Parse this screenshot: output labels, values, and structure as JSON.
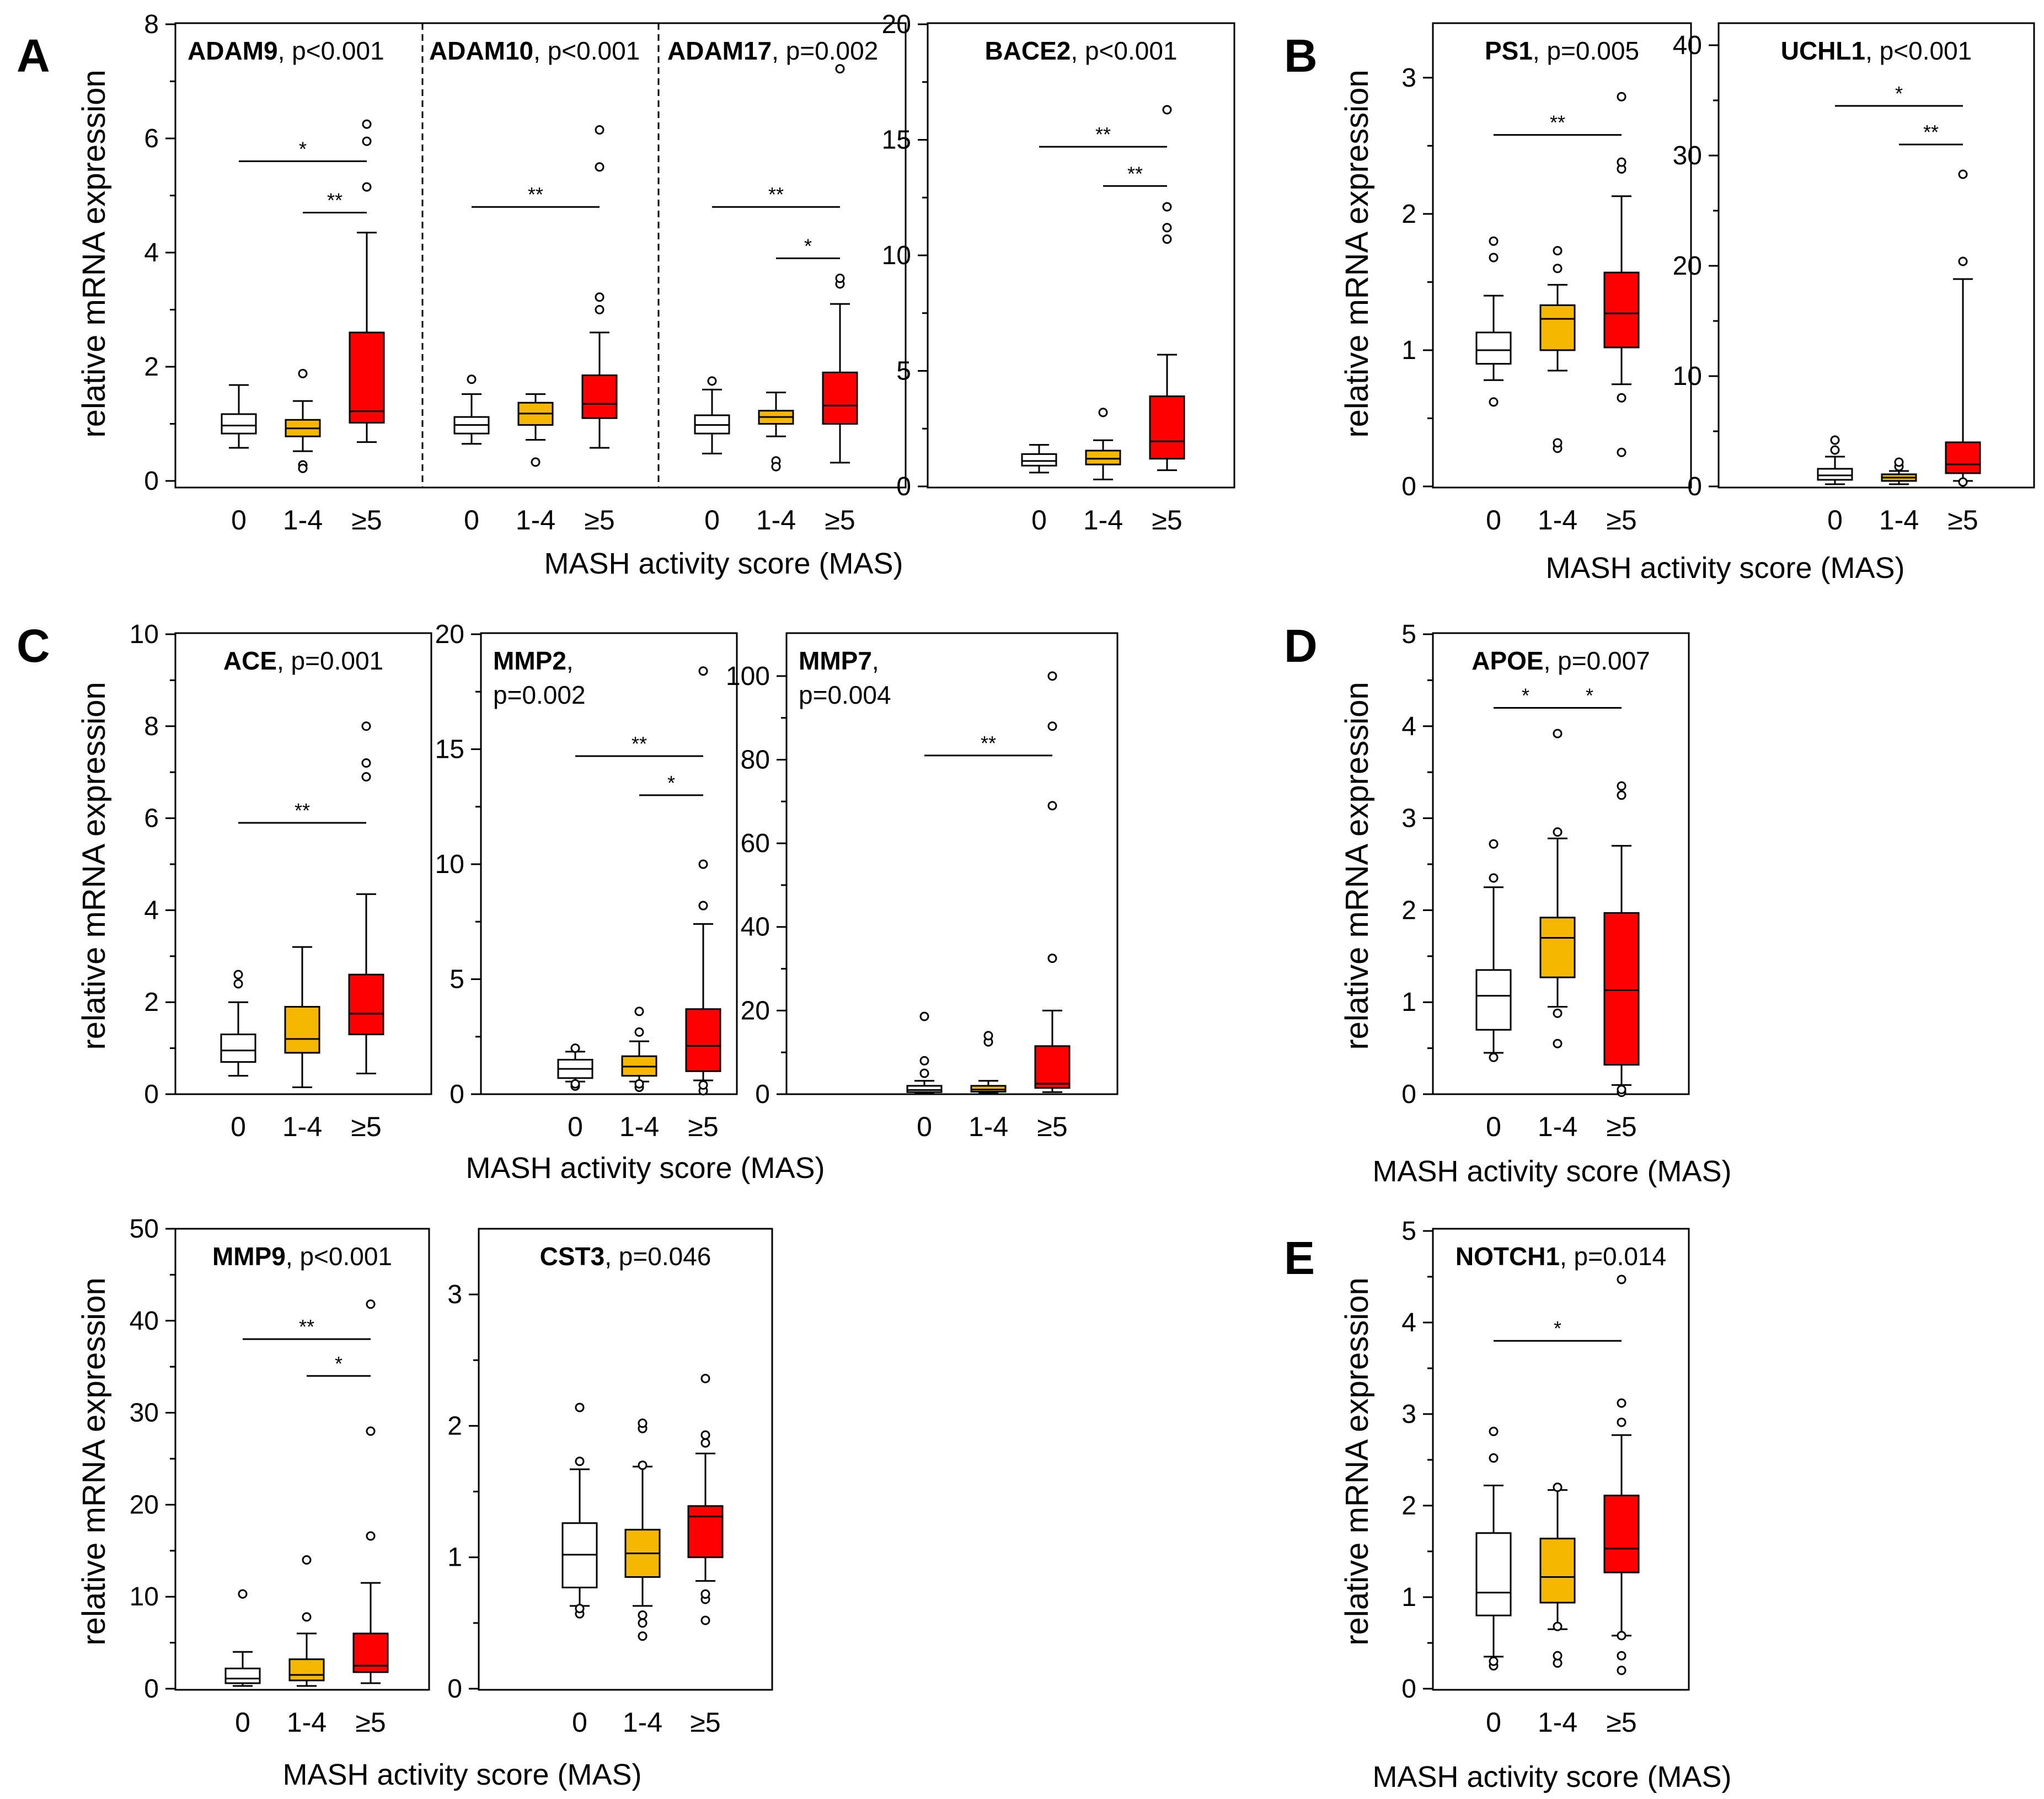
{
  "figure": {
    "ylabel": "relative mRNA expression",
    "xlabel": "MASH activity score (MAS)",
    "categories": [
      "0",
      "1-4",
      "≥5"
    ],
    "colors": {
      "g0": "#ffffff",
      "g1": "#f5b700",
      "g2": "#ff0000",
      "line": "#000000",
      "background": "#ffffff"
    },
    "panel_letters": [
      "A",
      "B",
      "C",
      "D",
      "E"
    ]
  },
  "chart_data": [
    {
      "type": "box",
      "id": "ADAM9",
      "panel": "A",
      "gene": "ADAM9",
      "pval": ", p<0.001",
      "ylim": [
        0,
        8
      ],
      "yticks": [
        0,
        2,
        4,
        6,
        8
      ],
      "categories": [
        "0",
        "1-4",
        "≥5"
      ],
      "groups": [
        {
          "whisker_low": 0.58,
          "q1": 0.83,
          "median": 0.97,
          "q3": 1.17,
          "whisker_high": 1.68,
          "outliers": []
        },
        {
          "whisker_low": 0.52,
          "q1": 0.78,
          "median": 0.92,
          "q3": 1.07,
          "whisker_high": 1.4,
          "outliers": [
            1.88,
            0.28,
            0.22
          ]
        },
        {
          "whisker_low": 0.68,
          "q1": 1.02,
          "median": 1.22,
          "q3": 2.6,
          "whisker_high": 4.35,
          "outliers": [
            5.15,
            5.95,
            6.25
          ]
        }
      ],
      "sig": [
        {
          "from": 0,
          "to": 2,
          "label": "*",
          "y": 5.6
        },
        {
          "from": 1,
          "to": 2,
          "label": "**",
          "y": 4.7
        }
      ]
    },
    {
      "type": "box",
      "id": "ADAM10",
      "panel": "A",
      "gene": "ADAM10",
      "pval": ", p<0.001",
      "ylim": [
        0,
        8
      ],
      "yticks": [],
      "categories": [
        "0",
        "1-4",
        "≥5"
      ],
      "groups": [
        {
          "whisker_low": 0.65,
          "q1": 0.83,
          "median": 0.98,
          "q3": 1.12,
          "whisker_high": 1.52,
          "outliers": [
            1.78
          ]
        },
        {
          "whisker_low": 0.72,
          "q1": 0.98,
          "median": 1.18,
          "q3": 1.37,
          "whisker_high": 1.52,
          "outliers": [
            0.33
          ]
        },
        {
          "whisker_low": 0.58,
          "q1": 1.1,
          "median": 1.35,
          "q3": 1.85,
          "whisker_high": 2.6,
          "outliers": [
            3.0,
            3.22,
            5.5,
            6.15
          ]
        }
      ],
      "sig": [
        {
          "from": 0,
          "to": 2,
          "label": "**",
          "y": 4.8
        }
      ]
    },
    {
      "type": "box",
      "id": "ADAM17",
      "panel": "A",
      "gene": "ADAM17",
      "pval": ", p=0.002",
      "ylim": [
        0,
        8
      ],
      "yticks": [],
      "categories": [
        "0",
        "1-4",
        "≥5"
      ],
      "groups": [
        {
          "whisker_low": 0.48,
          "q1": 0.83,
          "median": 0.98,
          "q3": 1.15,
          "whisker_high": 1.6,
          "outliers": [
            1.75
          ]
        },
        {
          "whisker_low": 0.78,
          "q1": 1.0,
          "median": 1.12,
          "q3": 1.23,
          "whisker_high": 1.55,
          "outliers": [
            0.35,
            0.25
          ]
        },
        {
          "whisker_low": 0.32,
          "q1": 1.0,
          "median": 1.32,
          "q3": 1.9,
          "whisker_high": 3.1,
          "outliers": [
            3.45,
            3.55,
            7.22
          ]
        }
      ],
      "sig": [
        {
          "from": 0,
          "to": 2,
          "label": "**",
          "y": 4.8
        },
        {
          "from": 1,
          "to": 2,
          "label": "*",
          "y": 3.9
        }
      ]
    },
    {
      "type": "box",
      "id": "BACE2",
      "panel": "A",
      "gene": "BACE2",
      "pval": ", p<0.001",
      "ylim": [
        0,
        20
      ],
      "yticks": [
        0,
        5,
        10,
        15,
        20
      ],
      "categories": [
        "0",
        "1-4",
        "≥5"
      ],
      "groups": [
        {
          "whisker_low": 0.6,
          "q1": 0.9,
          "median": 1.1,
          "q3": 1.4,
          "whisker_high": 1.8,
          "outliers": []
        },
        {
          "whisker_low": 0.3,
          "q1": 0.95,
          "median": 1.2,
          "q3": 1.55,
          "whisker_high": 2.0,
          "outliers": [
            3.2
          ]
        },
        {
          "whisker_low": 0.7,
          "q1": 1.2,
          "median": 1.95,
          "q3": 3.9,
          "whisker_high": 5.7,
          "outliers": [
            10.7,
            11.2,
            12.1,
            16.3
          ]
        }
      ],
      "sig": [
        {
          "from": 0,
          "to": 2,
          "label": "**",
          "y": 14.7
        },
        {
          "from": 1,
          "to": 2,
          "label": "**",
          "y": 13.0
        }
      ]
    },
    {
      "type": "box",
      "id": "PS1",
      "panel": "B",
      "gene": "PS1",
      "pval": ", p=0.005",
      "ylim": [
        0,
        3.4
      ],
      "yticks": [
        0,
        1,
        2,
        3
      ],
      "categories": [
        "0",
        "1-4",
        "≥5"
      ],
      "groups": [
        {
          "whisker_low": 0.78,
          "q1": 0.9,
          "median": 1.0,
          "q3": 1.13,
          "whisker_high": 1.4,
          "outliers": [
            0.62,
            1.68,
            1.8
          ]
        },
        {
          "whisker_low": 0.85,
          "q1": 1.0,
          "median": 1.23,
          "q3": 1.33,
          "whisker_high": 1.48,
          "outliers": [
            0.28,
            0.32,
            1.6,
            1.73
          ]
        },
        {
          "whisker_low": 0.75,
          "q1": 1.02,
          "median": 1.27,
          "q3": 1.57,
          "whisker_high": 2.13,
          "outliers": [
            0.25,
            0.65,
            2.33,
            2.38,
            2.86
          ]
        }
      ],
      "sig": [
        {
          "from": 0,
          "to": 2,
          "label": "**",
          "y": 2.58
        }
      ]
    },
    {
      "type": "box",
      "id": "UCHL1",
      "panel": "B",
      "gene": "UCHL1",
      "pval": ", p<0.001",
      "ylim": [
        0,
        42
      ],
      "yticks": [
        0,
        10,
        20,
        30,
        40
      ],
      "categories": [
        "0",
        "1-4",
        "≥5"
      ],
      "groups": [
        {
          "whisker_low": 0.2,
          "q1": 0.6,
          "median": 1.0,
          "q3": 1.6,
          "whisker_high": 2.7,
          "outliers": [
            3.3,
            4.2
          ]
        },
        {
          "whisker_low": 0.2,
          "q1": 0.5,
          "median": 0.8,
          "q3": 1.1,
          "whisker_high": 1.4,
          "outliers": [
            1.8,
            2.2
          ]
        },
        {
          "whisker_low": 0.5,
          "q1": 1.2,
          "median": 2.0,
          "q3": 4.0,
          "whisker_high": 18.8,
          "outliers": [
            20.4,
            28.3,
            0.4
          ]
        }
      ],
      "sig": [
        {
          "from": 0,
          "to": 2,
          "label": "*",
          "y": 34.5
        },
        {
          "from": 1,
          "to": 2,
          "label": "**",
          "y": 31.0
        }
      ]
    },
    {
      "type": "box",
      "id": "ACE",
      "panel": "C",
      "gene": "ACE",
      "pval": ", p=0.001",
      "ylim": [
        0,
        10
      ],
      "yticks": [
        0,
        2,
        4,
        6,
        8,
        10
      ],
      "categories": [
        "0",
        "1-4",
        "≥5"
      ],
      "groups": [
        {
          "whisker_low": 0.4,
          "q1": 0.7,
          "median": 0.95,
          "q3": 1.3,
          "whisker_high": 2.0,
          "outliers": [
            2.4,
            2.6
          ]
        },
        {
          "whisker_low": 0.15,
          "q1": 0.9,
          "median": 1.2,
          "q3": 1.9,
          "whisker_high": 3.2,
          "outliers": []
        },
        {
          "whisker_low": 0.45,
          "q1": 1.3,
          "median": 1.75,
          "q3": 2.6,
          "whisker_high": 4.35,
          "outliers": [
            6.9,
            7.2,
            8.0
          ]
        }
      ],
      "sig": [
        {
          "from": 0,
          "to": 2,
          "label": "**",
          "y": 5.9
        }
      ]
    },
    {
      "type": "box",
      "id": "MMP2",
      "panel": "C",
      "gene": "MMP2",
      "pval": "p=0.002",
      "title_wrap": true,
      "ylim": [
        0,
        20
      ],
      "yticks": [
        0,
        5,
        10,
        15,
        20
      ],
      "categories": [
        "0",
        "1-4",
        "≥5"
      ],
      "groups": [
        {
          "whisker_low": 0.55,
          "q1": 0.7,
          "median": 1.1,
          "q3": 1.5,
          "whisker_high": 1.85,
          "outliers": [
            0.35,
            0.45,
            2.0
          ]
        },
        {
          "whisker_low": 0.55,
          "q1": 0.8,
          "median": 1.2,
          "q3": 1.65,
          "whisker_high": 2.3,
          "outliers": [
            0.3,
            0.45,
            2.7,
            3.6
          ]
        },
        {
          "whisker_low": 0.6,
          "q1": 1.0,
          "median": 2.1,
          "q3": 3.7,
          "whisker_high": 7.4,
          "outliers": [
            0.15,
            0.4,
            8.2,
            10.0,
            18.4
          ]
        }
      ],
      "sig": [
        {
          "from": 0,
          "to": 2,
          "label": "**",
          "y": 14.7
        },
        {
          "from": 1,
          "to": 2,
          "label": "*",
          "y": 13.0
        }
      ]
    },
    {
      "type": "box",
      "id": "MMP7",
      "panel": "C",
      "gene": "MMP7",
      "pval": "p=0.004",
      "title_wrap": true,
      "ylim": [
        0,
        110
      ],
      "yticks": [
        0,
        20,
        40,
        60,
        80,
        100
      ],
      "categories": [
        "0",
        "1-4",
        "≥5"
      ],
      "groups": [
        {
          "whisker_low": 0.2,
          "q1": 0.5,
          "median": 1.0,
          "q3": 2.0,
          "whisker_high": 3.2,
          "outliers": [
            5.0,
            8.0,
            18.6
          ]
        },
        {
          "whisker_low": 0.2,
          "q1": 0.6,
          "median": 1.1,
          "q3": 2.0,
          "whisker_high": 3.2,
          "outliers": [
            12.5,
            14.0
          ]
        },
        {
          "whisker_low": 0.5,
          "q1": 1.5,
          "median": 2.5,
          "q3": 11.5,
          "whisker_high": 20.0,
          "outliers": [
            32.5,
            69.0,
            88.0,
            100.0
          ]
        }
      ],
      "sig": [
        {
          "from": 0,
          "to": 2,
          "label": "**",
          "y": 81.0
        }
      ]
    },
    {
      "type": "box",
      "id": "APOE",
      "panel": "D",
      "gene": "APOE",
      "pval": ", p=0.007",
      "ylim": [
        0,
        5
      ],
      "yticks": [
        0,
        1,
        2,
        3,
        4,
        5
      ],
      "categories": [
        "0",
        "1-4",
        "≥5"
      ],
      "groups": [
        {
          "whisker_low": 0.45,
          "q1": 0.7,
          "median": 1.07,
          "q3": 1.35,
          "whisker_high": 2.25,
          "outliers": [
            0.4,
            2.35,
            2.72
          ]
        },
        {
          "whisker_low": 0.95,
          "q1": 1.27,
          "median": 1.7,
          "q3": 1.92,
          "whisker_high": 2.78,
          "outliers": [
            0.55,
            0.88,
            2.85,
            3.92
          ]
        },
        {
          "whisker_low": 0.1,
          "q1": 0.32,
          "median": 1.13,
          "q3": 1.97,
          "whisker_high": 2.7,
          "outliers": [
            0.02,
            0.05,
            3.25,
            3.35
          ]
        }
      ],
      "sig": [
        {
          "from": 0,
          "to": 1,
          "label": "*",
          "y": 4.2
        },
        {
          "from": 1,
          "to": 2,
          "label": "*",
          "y": 4.2
        }
      ]
    },
    {
      "type": "box",
      "id": "MMP9",
      "panel": "C",
      "gene": "MMP9",
      "pval": ", p<0.001",
      "ylim": [
        0,
        50
      ],
      "yticks": [
        0,
        10,
        20,
        30,
        40,
        50
      ],
      "categories": [
        "0",
        "1-4",
        "≥5"
      ],
      "groups": [
        {
          "whisker_low": 0.3,
          "q1": 0.6,
          "median": 1.1,
          "q3": 2.2,
          "whisker_high": 4.0,
          "outliers": [
            10.3
          ]
        },
        {
          "whisker_low": 0.3,
          "q1": 0.9,
          "median": 1.5,
          "q3": 3.2,
          "whisker_high": 6.0,
          "outliers": [
            7.8,
            14.0
          ]
        },
        {
          "whisker_low": 0.6,
          "q1": 1.8,
          "median": 2.5,
          "q3": 6.0,
          "whisker_high": 11.5,
          "outliers": [
            16.6,
            28.0,
            41.8
          ]
        }
      ],
      "sig": [
        {
          "from": 0,
          "to": 2,
          "label": "**",
          "y": 38.0
        },
        {
          "from": 1,
          "to": 2,
          "label": "*",
          "y": 34.0
        }
      ]
    },
    {
      "type": "box",
      "id": "CST3",
      "panel": "C",
      "gene": "CST3",
      "pval": ", p=0.046",
      "ylim": [
        0,
        3.5
      ],
      "yticks": [
        0,
        1,
        2,
        3
      ],
      "categories": [
        "0",
        "1-4",
        "≥5"
      ],
      "groups": [
        {
          "whisker_low": 0.63,
          "q1": 0.77,
          "median": 1.02,
          "q3": 1.26,
          "whisker_high": 1.67,
          "outliers": [
            0.57,
            0.61,
            1.73,
            2.14
          ]
        },
        {
          "whisker_low": 0.63,
          "q1": 0.85,
          "median": 1.03,
          "q3": 1.21,
          "whisker_high": 1.69,
          "outliers": [
            0.4,
            0.5,
            0.56,
            1.7,
            1.98,
            2.02
          ]
        },
        {
          "whisker_low": 0.82,
          "q1": 1.0,
          "median": 1.31,
          "q3": 1.39,
          "whisker_high": 1.79,
          "outliers": [
            0.52,
            0.68,
            0.72,
            1.87,
            1.93,
            2.36
          ]
        }
      ],
      "sig": []
    },
    {
      "type": "box",
      "id": "NOTCH1",
      "panel": "E",
      "gene": "NOTCH1",
      "pval": ", p=0.014",
      "ylim": [
        0,
        5
      ],
      "yticks": [
        0,
        1,
        2,
        3,
        4,
        5
      ],
      "categories": [
        "0",
        "1-4",
        "≥5"
      ],
      "groups": [
        {
          "whisker_low": 0.35,
          "q1": 0.8,
          "median": 1.05,
          "q3": 1.7,
          "whisker_high": 2.22,
          "outliers": [
            0.25,
            0.3,
            2.52,
            2.81
          ]
        },
        {
          "whisker_low": 0.65,
          "q1": 0.94,
          "median": 1.22,
          "q3": 1.64,
          "whisker_high": 2.17,
          "outliers": [
            0.28,
            0.36,
            0.68,
            2.2
          ]
        },
        {
          "whisker_low": 0.58,
          "q1": 1.27,
          "median": 1.53,
          "q3": 2.11,
          "whisker_high": 2.77,
          "outliers": [
            0.2,
            0.36,
            0.58,
            2.91,
            3.12,
            4.47
          ]
        }
      ],
      "sig": [
        {
          "from": 0,
          "to": 2,
          "label": "*",
          "y": 3.8
        }
      ]
    }
  ]
}
